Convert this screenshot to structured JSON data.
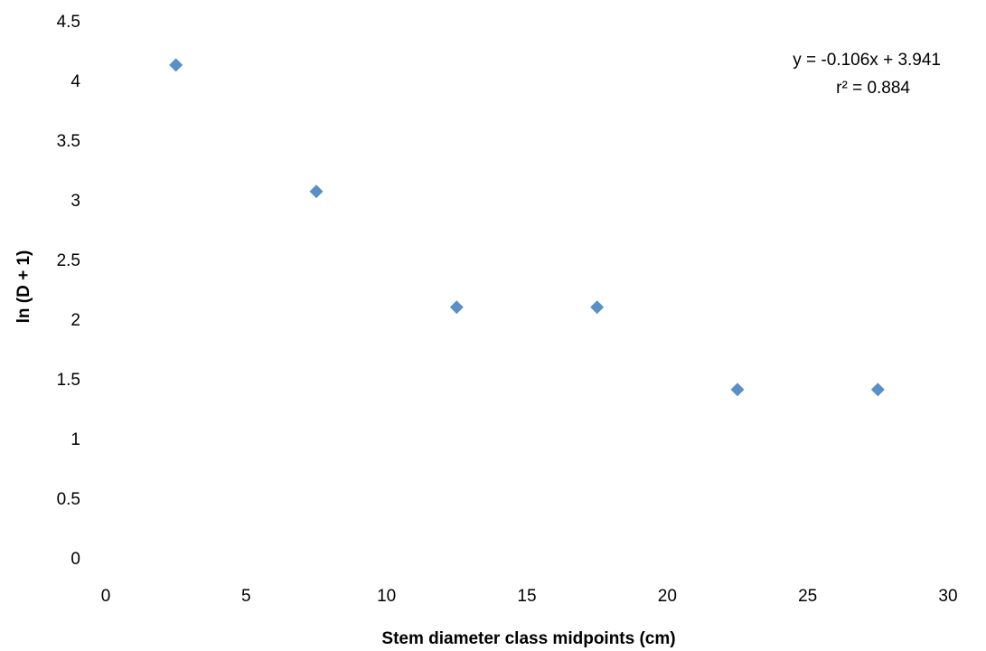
{
  "chart_data": {
    "type": "scatter",
    "title": "",
    "xlabel": "Stem diameter class midpoints (cm)",
    "ylabel": "ln (D + 1)",
    "xlim": [
      0,
      30
    ],
    "ylim": [
      0,
      4.5
    ],
    "x_ticks": [
      "0",
      "5",
      "10",
      "15",
      "20",
      "25",
      "30"
    ],
    "y_ticks": [
      "0",
      "0.5",
      "1",
      "1.5",
      "2",
      "2.5",
      "3",
      "3.5",
      "4",
      "4.5"
    ],
    "grid": false,
    "legend": "none",
    "marker": "diamond",
    "marker_color": "#5B8FC8",
    "series": [
      {
        "x": [
          2.5,
          7.5,
          12.5,
          17.5,
          22.5,
          27.5
        ],
        "y": [
          4.13,
          3.07,
          2.1,
          2.1,
          1.41,
          1.41
        ]
      }
    ],
    "annotations": {
      "equation": "y = -0.106x + 3.941",
      "r_squared": "r² = 0.884"
    }
  }
}
